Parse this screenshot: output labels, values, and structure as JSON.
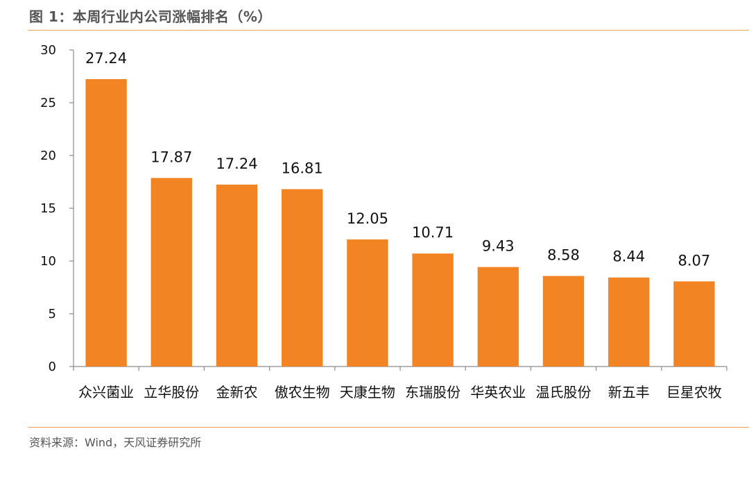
{
  "header": {
    "title": "图 1：本周行业内公司涨幅排名（%）"
  },
  "footer": {
    "source": "资料来源：Wind，天风证券研究所"
  },
  "colors": {
    "bar": "#f28424",
    "rule": "#f0a05a",
    "axis": "#8c8c8c"
  },
  "chart_data": {
    "type": "bar",
    "categories": [
      "众兴菌业",
      "立华股份",
      "金新农",
      "傲农生物",
      "天康生物",
      "东瑞股份",
      "华英农业",
      "温氏股份",
      "新五丰",
      "巨星农牧"
    ],
    "values": [
      27.24,
      17.87,
      17.24,
      16.81,
      12.05,
      10.71,
      9.43,
      8.58,
      8.44,
      8.07
    ],
    "value_labels": [
      "27.24",
      "17.87",
      "17.24",
      "16.81",
      "12.05",
      "10.71",
      "9.43",
      "8.58",
      "8.44",
      "8.07"
    ],
    "yticks": [
      0,
      5,
      10,
      15,
      20,
      25,
      30
    ],
    "ylim": [
      0,
      30
    ],
    "grid": false,
    "legend": "none"
  }
}
